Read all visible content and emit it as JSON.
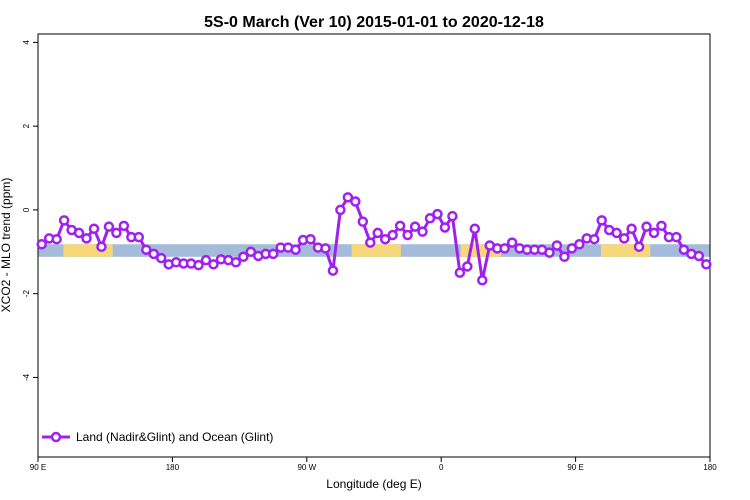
{
  "chart_data": {
    "type": "line",
    "title": "5S-0 March (Ver 10)   2015-01-01 to 2020-12-18",
    "xlabel": "Longitude (deg E)",
    "ylabel": "XCO2 - MLO trend (ppm)",
    "x_ticks": [
      {
        "value": 90,
        "label": "90 E"
      },
      {
        "value": 180,
        "label": "180"
      },
      {
        "value": 270,
        "label": "90 W"
      },
      {
        "value": 360,
        "label": "0"
      },
      {
        "value": 450,
        "label": "90 E"
      },
      {
        "value": 540,
        "label": "180"
      }
    ],
    "y_ticks": [
      {
        "value": 4,
        "label": "4"
      },
      {
        "value": 2,
        "label": "2"
      },
      {
        "value": 0,
        "label": "0"
      },
      {
        "value": -2,
        "label": "-2"
      },
      {
        "value": -4,
        "label": "-4"
      }
    ],
    "xlim": [
      90,
      540
    ],
    "ylim": [
      -5.9,
      4.2
    ],
    "legend_position": "bottom-left",
    "band": {
      "y_min": -1.12,
      "y_max": -0.82
    },
    "series": [
      {
        "name": "Land (Nadir&Glint) and Ocean (Glint)",
        "color": "#a020f0",
        "x": [
          92.5,
          97.5,
          102.5,
          107.5,
          112.5,
          117.5,
          122.5,
          127.5,
          132.5,
          137.5,
          142.5,
          147.5,
          152.5,
          157.5,
          162.5,
          167.5,
          172.5,
          177.5,
          182.5,
          187.5,
          192.5,
          197.5,
          202.5,
          207.5,
          212.5,
          217.5,
          222.5,
          227.5,
          232.5,
          237.5,
          242.5,
          247.5,
          252.5,
          257.5,
          262.5,
          267.5,
          272.5,
          277.5,
          282.5,
          287.5,
          292.5,
          297.5,
          302.5,
          307.5,
          312.5,
          317.5,
          322.5,
          327.5,
          332.5,
          337.5,
          342.5,
          347.5,
          352.5,
          357.5,
          362.5,
          367.5,
          372.5,
          377.5,
          382.5,
          387.5,
          392.5,
          397.5,
          402.5,
          407.5,
          412.5,
          417.5,
          422.5,
          427.5,
          432.5,
          437.5,
          442.5,
          447.5,
          452.5,
          457.5,
          462.5,
          467.5,
          472.5,
          477.5,
          482.5,
          487.5,
          492.5,
          497.5,
          502.5,
          507.5,
          512.5,
          517.5,
          522.5,
          527.5,
          532.5,
          537.5
        ],
        "values": [
          -0.82,
          -0.68,
          -0.7,
          -0.25,
          -0.48,
          -0.55,
          -0.68,
          -0.45,
          -0.88,
          -0.4,
          -0.55,
          -0.38,
          -0.65,
          -0.65,
          -0.95,
          -1.05,
          -1.15,
          -1.3,
          -1.25,
          -1.28,
          -1.28,
          -1.32,
          -1.2,
          -1.3,
          -1.18,
          -1.2,
          -1.25,
          -1.12,
          -1.0,
          -1.1,
          -1.05,
          -1.05,
          -0.9,
          -0.9,
          -0.95,
          -0.72,
          -0.7,
          -0.9,
          -0.92,
          -1.45,
          0.0,
          0.3,
          0.2,
          -0.28,
          -0.78,
          -0.55,
          -0.7,
          -0.6,
          -0.38,
          -0.6,
          -0.4,
          -0.52,
          -0.2,
          -0.1,
          -0.42,
          -0.15,
          -1.5,
          -1.35,
          -0.45,
          -1.68,
          -0.85,
          -0.92,
          -0.92,
          -0.78,
          -0.92,
          -0.95,
          -0.95,
          -0.95,
          -1.02,
          -0.85,
          -1.12,
          -0.92,
          -0.82,
          -0.68,
          -0.7,
          -0.25,
          -0.48,
          -0.55,
          -0.68,
          -0.45,
          -0.88,
          -0.4,
          -0.55,
          -0.38,
          -0.65,
          -0.65,
          -0.95,
          -1.05,
          -1.1,
          -1.3
        ]
      }
    ],
    "land_ranges": [
      [
        107,
        140
      ],
      [
        300,
        333
      ],
      [
        373,
        400
      ],
      [
        467,
        500
      ]
    ]
  }
}
